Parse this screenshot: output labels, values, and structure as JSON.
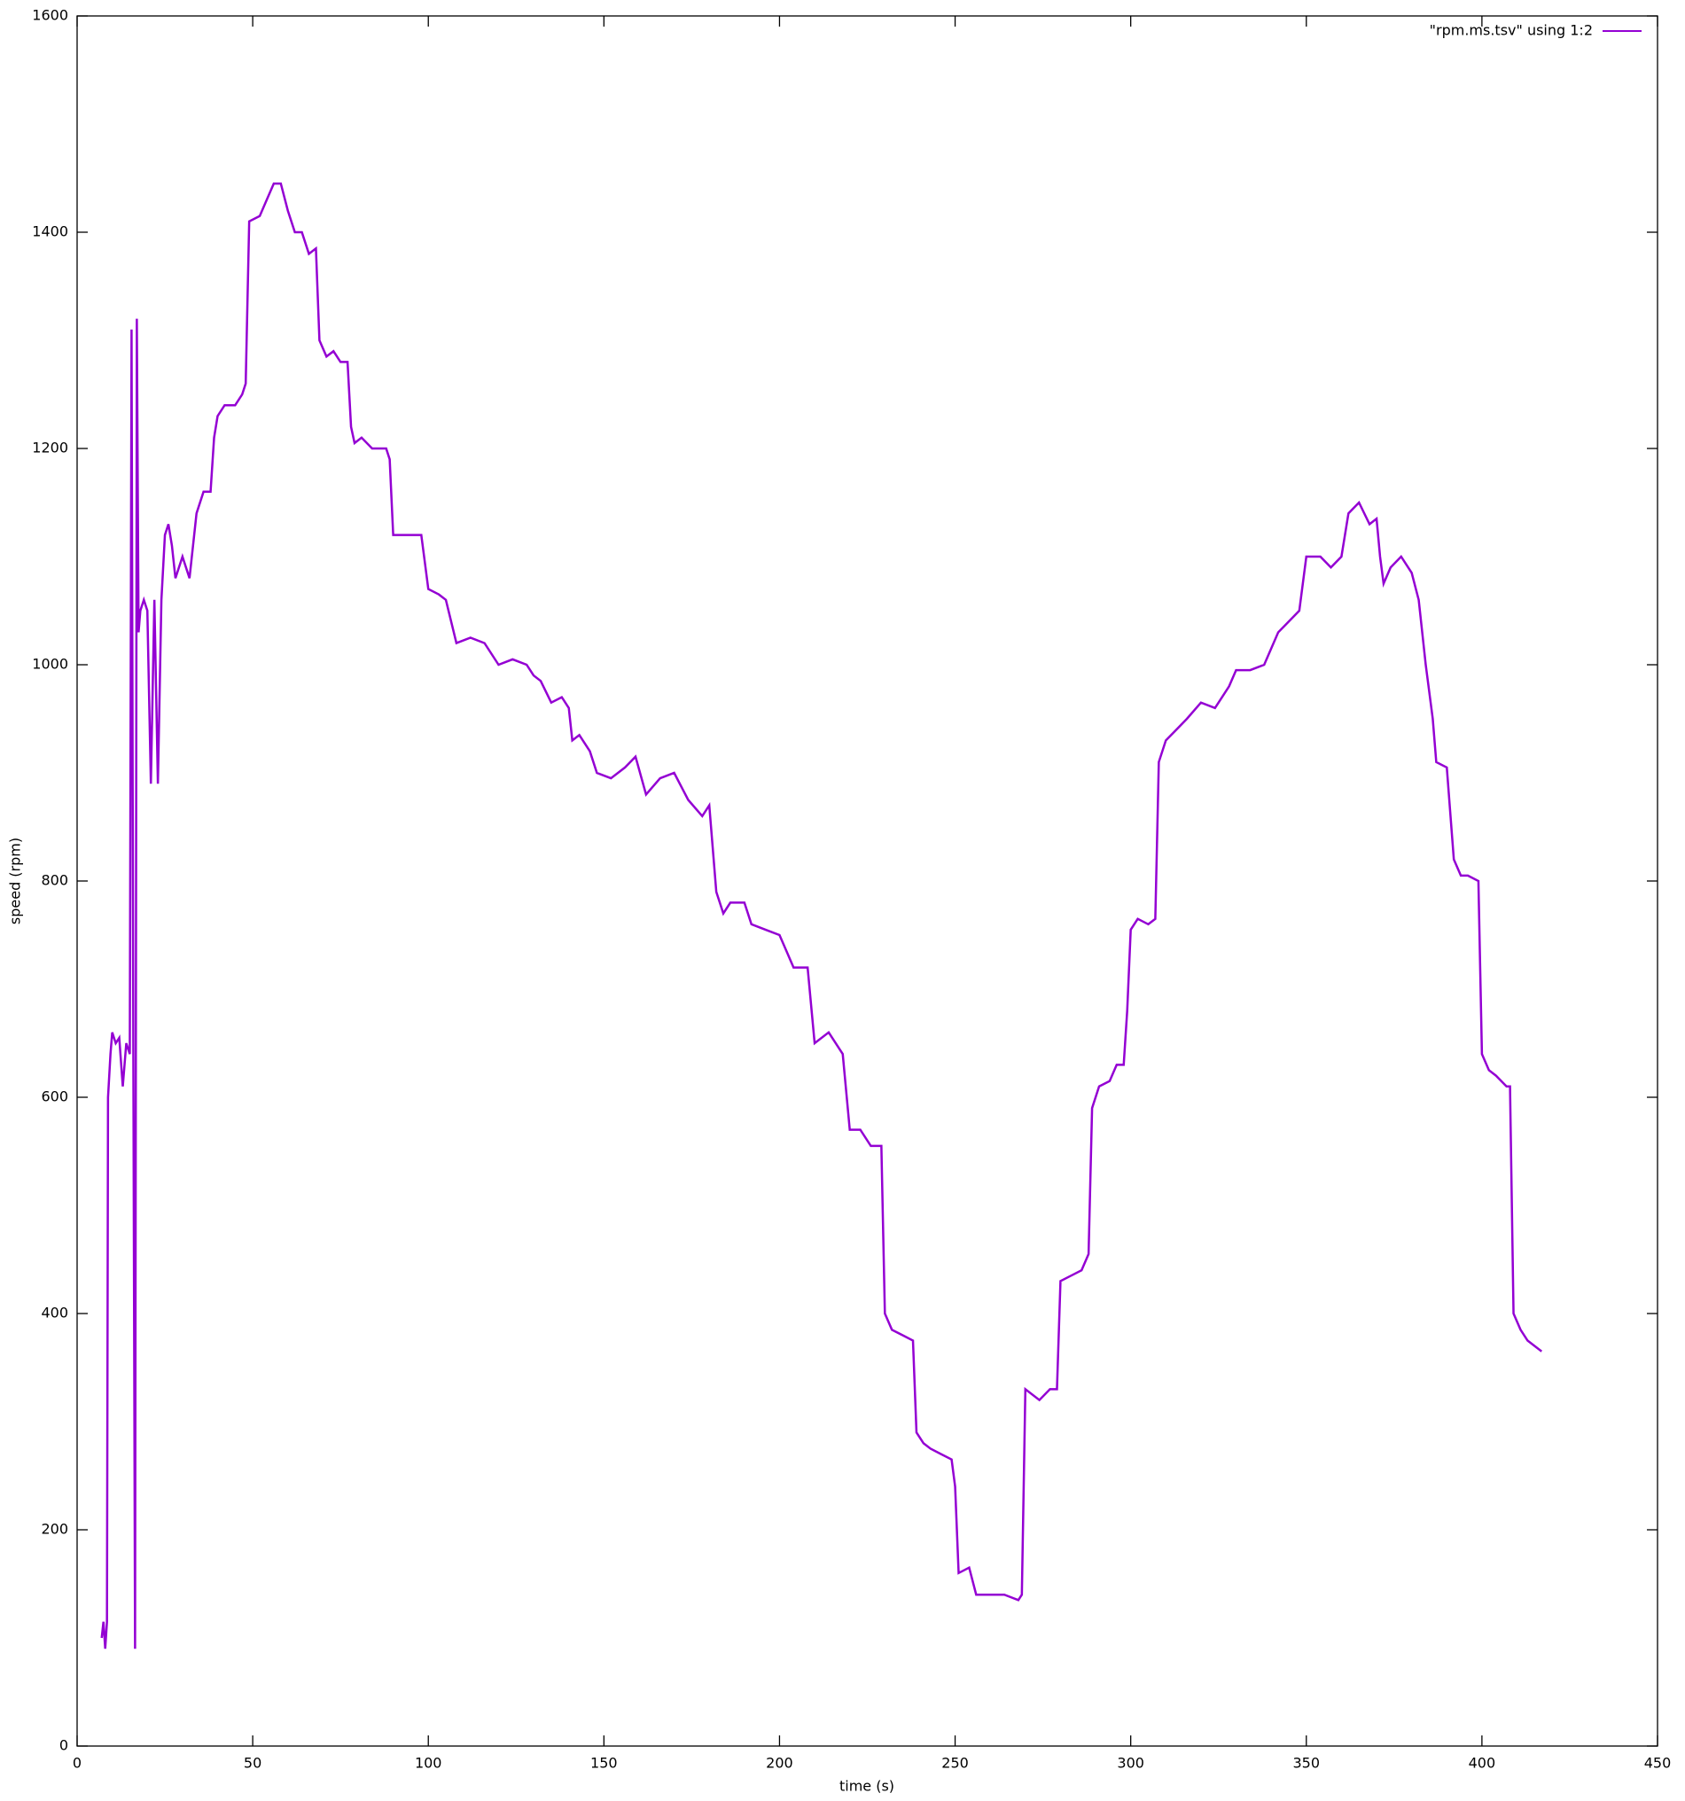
{
  "chart_data": {
    "type": "line",
    "xlabel": "time (s)",
    "ylabel": "speed (rpm)",
    "xlim": [
      0,
      450
    ],
    "xticks": [
      0,
      50,
      100,
      150,
      200,
      250,
      300,
      350,
      400,
      450
    ],
    "ylim": [
      0,
      1600
    ],
    "yticks": [
      0,
      200,
      400,
      600,
      800,
      1000,
      1200,
      1400,
      1600
    ],
    "legend": "top-right",
    "series": [
      {
        "name": "\"rpm.ms.tsv\" using 1:2",
        "color": "#9400d3",
        "x": [
          7,
          7.5,
          8,
          8.5,
          8.8,
          9.5,
          10,
          11,
          12,
          13,
          14,
          15,
          15.5,
          16,
          16.5,
          17,
          17.5,
          18,
          19,
          20,
          21,
          22,
          23,
          24,
          25,
          26,
          27,
          28,
          30,
          32,
          34,
          36,
          38,
          39,
          40,
          42,
          45,
          47,
          48,
          49,
          52,
          54,
          56,
          58,
          60,
          62,
          64,
          66,
          68,
          69,
          71,
          73,
          75,
          77,
          78,
          79,
          81,
          84,
          88,
          89,
          90,
          92,
          95,
          98,
          100,
          103,
          105,
          108,
          112,
          116,
          120,
          124,
          128,
          130,
          132,
          135,
          138,
          140,
          141,
          143,
          146,
          148,
          152,
          156,
          159,
          162,
          166,
          170,
          174,
          178,
          180,
          182,
          184,
          186,
          190,
          192,
          196,
          200,
          202,
          204,
          208,
          210,
          214,
          218,
          220,
          223,
          226,
          229,
          230,
          232,
          235,
          238,
          239,
          241,
          243,
          246,
          249,
          250,
          251,
          254,
          256,
          260,
          264,
          268,
          269,
          270,
          274,
          277,
          279,
          280,
          283,
          286,
          288,
          289,
          291,
          294,
          296,
          298,
          299,
          300,
          302,
          305,
          307,
          308,
          310,
          313,
          316,
          320,
          324,
          328,
          330,
          334,
          338,
          342,
          345,
          348,
          350,
          354,
          357,
          360,
          362,
          365,
          368,
          370,
          371,
          372,
          374,
          377,
          380,
          382,
          384,
          386,
          387,
          390,
          392,
          394,
          396,
          399,
          400,
          402,
          404,
          407,
          408,
          409,
          411,
          413,
          415,
          417
        ],
        "values": [
          100,
          115,
          90,
          115,
          600,
          640,
          660,
          650,
          655,
          610,
          650,
          640,
          1310,
          650,
          90,
          1320,
          1030,
          1050,
          1060,
          1050,
          890,
          1060,
          890,
          1060,
          1120,
          1130,
          1110,
          1080,
          1100,
          1080,
          1140,
          1160,
          1160,
          1210,
          1230,
          1240,
          1240,
          1250,
          1260,
          1410,
          1415,
          1430,
          1445,
          1445,
          1420,
          1400,
          1400,
          1380,
          1385,
          1300,
          1285,
          1290,
          1280,
          1280,
          1220,
          1205,
          1210,
          1200,
          1200,
          1190,
          1120,
          1120,
          1120,
          1120,
          1070,
          1065,
          1060,
          1020,
          1025,
          1020,
          1000,
          1005,
          1000,
          990,
          985,
          965,
          970,
          960,
          930,
          935,
          920,
          900,
          895,
          905,
          915,
          880,
          895,
          900,
          875,
          860,
          870,
          790,
          770,
          780,
          780,
          760,
          755,
          750,
          735,
          720,
          720,
          650,
          660,
          640,
          570,
          570,
          555,
          555,
          400,
          385,
          380,
          375,
          290,
          280,
          275,
          270,
          265,
          240,
          160,
          165,
          140,
          140,
          140,
          135,
          140,
          330,
          320,
          330,
          330,
          430,
          435,
          440,
          455,
          590,
          610,
          615,
          630,
          630,
          680,
          755,
          765,
          760,
          765,
          910,
          930,
          940,
          950,
          965,
          960,
          980,
          995,
          995,
          1000,
          1030,
          1040,
          1050,
          1100,
          1100,
          1090,
          1100,
          1140,
          1150,
          1130,
          1135,
          1100,
          1075,
          1090,
          1100,
          1085,
          1060,
          1000,
          950,
          910,
          905,
          820,
          805,
          805,
          800,
          640,
          625,
          620,
          610,
          610,
          400,
          385,
          375,
          370,
          365
        ]
      }
    ]
  }
}
